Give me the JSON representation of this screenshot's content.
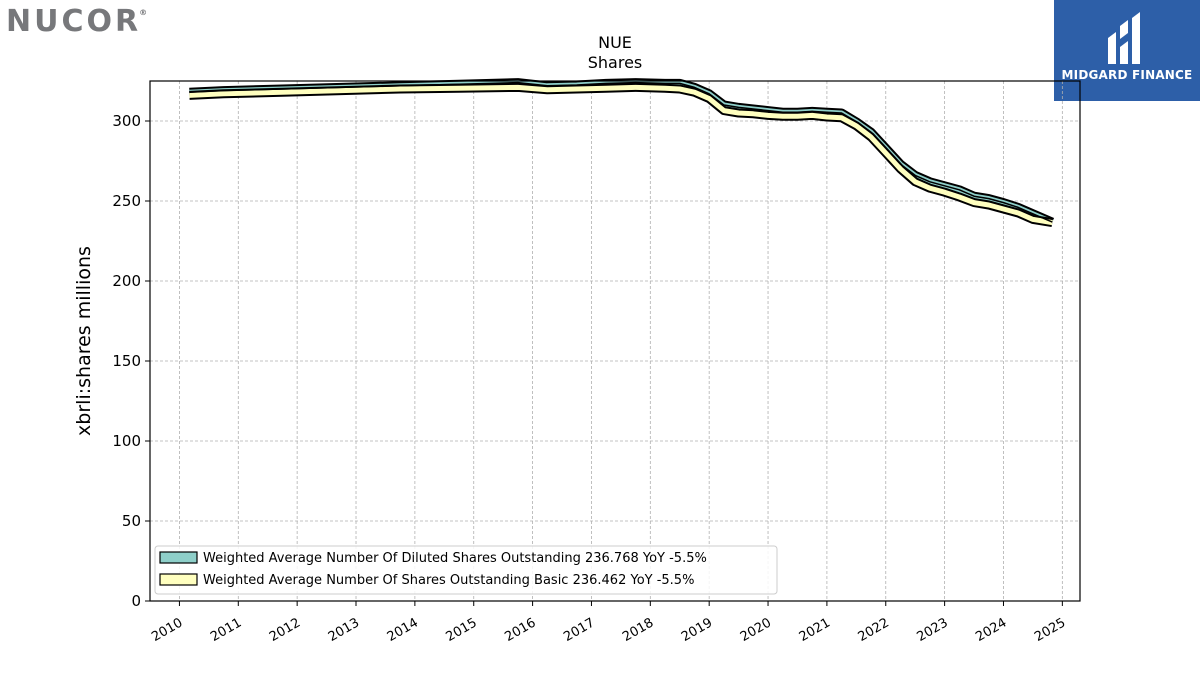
{
  "branding": {
    "left_logo_text": "NUCOR",
    "left_logo_mark": "®",
    "right_logo_text": "MIDGARD FINANCE",
    "right_logo_icon": "midgard-m-icon",
    "right_logo_bg": "#2d5fa8"
  },
  "chart_data": {
    "type": "line",
    "title": "NUE",
    "subtitle": "Shares",
    "ylabel": "xbrli:shares millions",
    "xlabel": "",
    "xlim": [
      2009.5,
      2025.3
    ],
    "ylim": [
      0,
      325
    ],
    "x_ticks": [
      "2010",
      "2011",
      "2012",
      "2013",
      "2014",
      "2015",
      "2016",
      "2017",
      "2018",
      "2019",
      "2020",
      "2021",
      "2022",
      "2023",
      "2024",
      "2025"
    ],
    "y_ticks": [
      0,
      50,
      100,
      150,
      200,
      250,
      300
    ],
    "grid": true,
    "legend_position": "lower-left",
    "series": [
      {
        "name": "Weighted Average Number Of Diluted Shares Outstanding",
        "legend_label": "Weighted Average Number Of Diluted Shares Outstanding  236.768 YoY -5.5%",
        "color": "#8ecfc9",
        "x": [
          2010.17,
          2010.75,
          2011.75,
          2012.75,
          2013.75,
          2014.75,
          2015.75,
          2016.25,
          2016.75,
          2017.25,
          2017.75,
          2018.25,
          2018.5,
          2018.75,
          2019.0,
          2019.25,
          2019.5,
          2019.75,
          2020.0,
          2020.25,
          2020.5,
          2020.75,
          2021.0,
          2021.25,
          2021.5,
          2021.75,
          2022.0,
          2022.25,
          2022.5,
          2022.75,
          2023.0,
          2023.25,
          2023.5,
          2023.75,
          2024.0,
          2024.25,
          2024.5,
          2024.83
        ],
        "values": [
          318,
          319,
          320,
          321,
          322,
          323,
          324,
          322,
          322.5,
          323.5,
          324,
          323.5,
          323.5,
          321,
          317,
          310,
          308.5,
          307.5,
          306.5,
          305.5,
          305.5,
          306,
          305.5,
          305,
          299.5,
          293,
          283,
          273,
          266,
          262,
          259.5,
          257,
          253,
          251.5,
          249,
          246,
          242,
          236.8
        ]
      },
      {
        "name": "Weighted Average Number Of Shares Outstanding Basic",
        "legend_label": "Weighted Average Number Of Shares Outstanding Basic  236.462 YoY -5.5%",
        "color": "#ffffbf",
        "x": [
          2010.17,
          2010.75,
          2011.75,
          2012.75,
          2013.75,
          2014.75,
          2015.75,
          2016.25,
          2016.75,
          2017.25,
          2017.75,
          2018.25,
          2018.5,
          2018.75,
          2019.0,
          2019.25,
          2019.5,
          2019.75,
          2020.0,
          2020.25,
          2020.5,
          2020.75,
          2021.0,
          2021.25,
          2021.5,
          2021.75,
          2022.0,
          2022.25,
          2022.5,
          2022.75,
          2023.0,
          2023.25,
          2023.5,
          2023.75,
          2024.0,
          2024.25,
          2024.5,
          2024.83
        ],
        "values": [
          316,
          317,
          318,
          319,
          320,
          320.5,
          321,
          319.5,
          320,
          320.5,
          321,
          320.5,
          320,
          318,
          314,
          306.5,
          305,
          304.5,
          303.5,
          303,
          303,
          303.5,
          302.5,
          302,
          297,
          290,
          280,
          270,
          262,
          258,
          255.5,
          252.5,
          249,
          247.5,
          245,
          242.5,
          238.5,
          236.5
        ]
      }
    ]
  }
}
